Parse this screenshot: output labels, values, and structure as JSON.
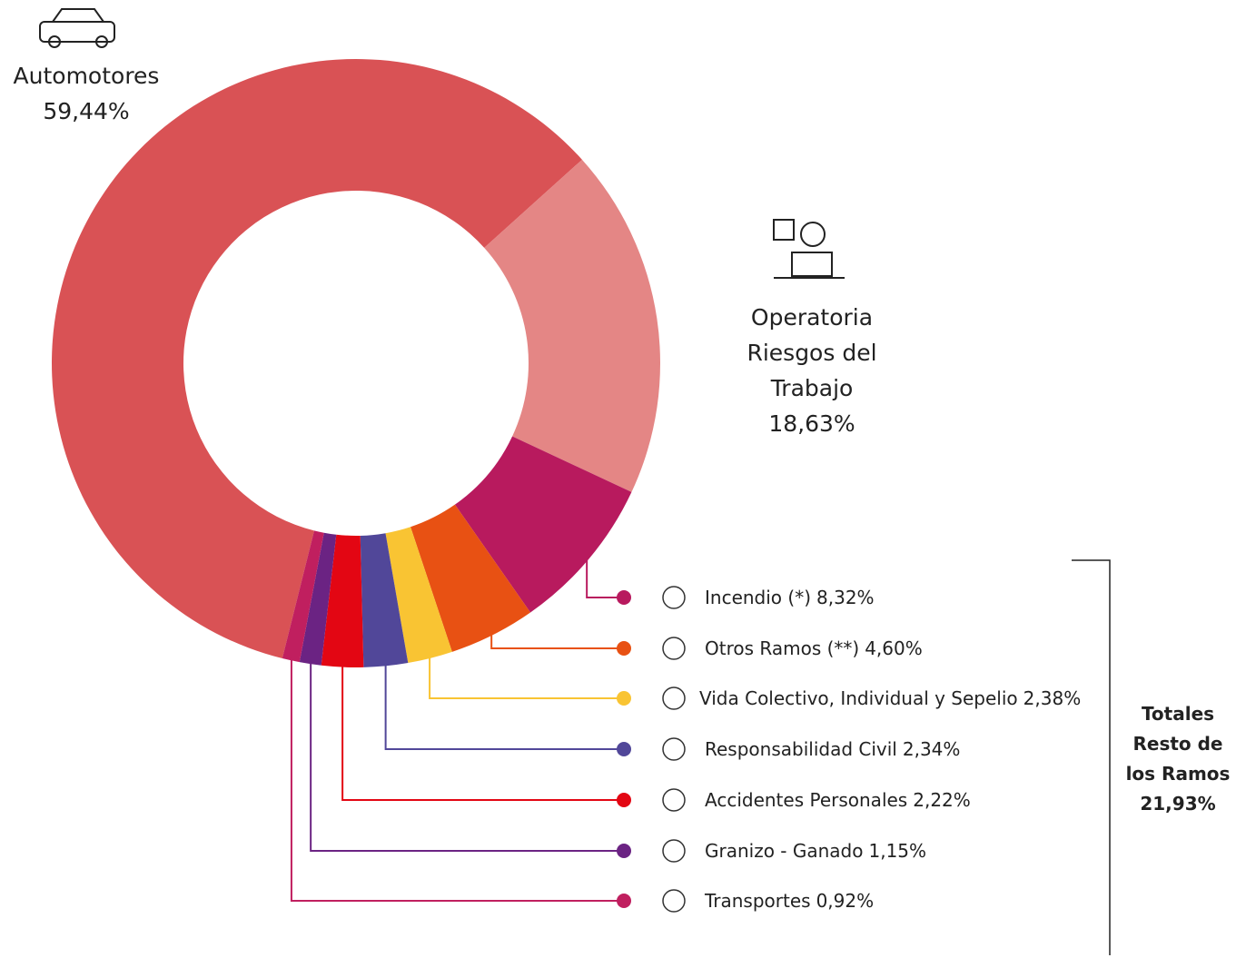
{
  "chart_data": {
    "type": "donut",
    "categories": [
      "Automotores",
      "Operatoria Riesgos del Trabajo",
      "Incendio (*)",
      "Otros Ramos (**)",
      "Vida Colectivo, Individual y Sepelio",
      "Responsabilidad Civil",
      "Accidentes Personales",
      "Granizo - Ganado",
      "Transportes"
    ],
    "values": [
      59.44,
      18.63,
      8.32,
      4.6,
      2.38,
      2.34,
      2.22,
      1.15,
      0.92
    ],
    "value_labels": [
      "59,44%",
      "18,63%",
      "8,32%",
      "4,60%",
      "2,38%",
      "2,34%",
      "2,22%",
      "1,15%",
      "0,92%"
    ],
    "colors": [
      "#d95255",
      "#e48685",
      "#b81a5e",
      "#e85113",
      "#f9c433",
      "#514799",
      "#e30613",
      "#6b2383",
      "#c01f5f"
    ],
    "annotation": {
      "text": "Totales Resto de los Ramos",
      "value": "21,93%"
    }
  }
}
